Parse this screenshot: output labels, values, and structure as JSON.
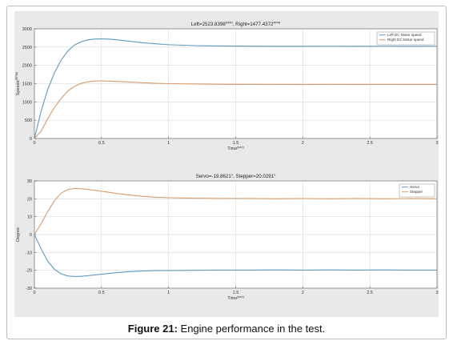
{
  "caption": {
    "label": "Figure 21:",
    "text": " Engine performance in the test."
  },
  "chart_data": [
    {
      "type": "line",
      "title": "Left=2523.8398",
      "title_sup1": "RPM",
      "title_mid": ", Right=1477.4372",
      "title_sup2": "RPM",
      "xlabel": "Time",
      "xlabel_sup": "(sec)",
      "ylabel": "Speeds",
      "ylabel_sup": "(RPM)",
      "xlim": [
        0,
        3
      ],
      "ylim": [
        0,
        3000
      ],
      "xticks": [
        0,
        0.5,
        1,
        1.5,
        2,
        2.5,
        3
      ],
      "xtick_labels": [
        "0",
        "0.5",
        "1",
        "1.5",
        "2",
        "2.5",
        "3"
      ],
      "yticks": [
        0,
        500,
        1000,
        1500,
        2000,
        2500,
        3000
      ],
      "ytick_labels": [
        "0",
        "500",
        "1000",
        "1500",
        "2000",
        "2500",
        "3000"
      ],
      "grid": true,
      "legend_position": "top-right",
      "x": [
        0,
        0.05,
        0.1,
        0.15,
        0.2,
        0.25,
        0.3,
        0.35,
        0.4,
        0.45,
        0.5,
        0.55,
        0.6,
        0.7,
        0.8,
        0.9,
        1.0,
        1.2,
        1.4,
        1.6,
        1.8,
        2.0,
        2.2,
        2.4,
        2.6,
        2.8,
        3.0
      ],
      "series": [
        {
          "name": "Left DC Motor speed",
          "color": "#5b9bbd",
          "values": [
            0,
            750,
            1350,
            1800,
            2150,
            2400,
            2560,
            2650,
            2700,
            2720,
            2725,
            2720,
            2705,
            2665,
            2620,
            2590,
            2565,
            2540,
            2530,
            2525,
            2523,
            2523,
            2524,
            2523,
            2524,
            2523,
            2524
          ]
        },
        {
          "name": "Right DC Motor speed",
          "color": "#d99a6c",
          "values": [
            0,
            200,
            550,
            850,
            1100,
            1300,
            1430,
            1510,
            1550,
            1570,
            1575,
            1570,
            1562,
            1545,
            1525,
            1510,
            1500,
            1490,
            1482,
            1479,
            1478,
            1477,
            1478,
            1477,
            1478,
            1477,
            1477
          ]
        }
      ]
    },
    {
      "type": "line",
      "title": "Servo=-19.8621",
      "title_sup1": "o",
      "title_mid": ", Stepper=20.0291",
      "title_sup2": "o",
      "xlabel": "Time",
      "xlabel_sup": "(sec)",
      "ylabel": "Degree",
      "ylabel_sup": "",
      "xlim": [
        0,
        3
      ],
      "ylim": [
        -30,
        30
      ],
      "xticks": [
        0,
        0.5,
        1,
        1.5,
        2,
        2.5,
        3
      ],
      "xtick_labels": [
        "0",
        "0.5",
        "1",
        "1.5",
        "2",
        "2.5",
        "3"
      ],
      "yticks": [
        -30,
        -20,
        -10,
        0,
        10,
        20,
        30
      ],
      "ytick_labels": [
        "-30",
        "-20",
        "-10",
        "0",
        "10",
        "20",
        "30"
      ],
      "grid": true,
      "legend_position": "top-right",
      "x": [
        0,
        0.05,
        0.1,
        0.15,
        0.2,
        0.25,
        0.3,
        0.35,
        0.4,
        0.45,
        0.5,
        0.55,
        0.6,
        0.7,
        0.8,
        0.9,
        1.0,
        1.2,
        1.4,
        1.6,
        1.8,
        2.0,
        2.2,
        2.4,
        2.6,
        2.8,
        3.0
      ],
      "series": [
        {
          "name": "Servo",
          "color": "#5b9bbd",
          "values": [
            0,
            -8,
            -15,
            -19.5,
            -22,
            -23.2,
            -23.5,
            -23.3,
            -23,
            -22.6,
            -22.2,
            -21.8,
            -21.4,
            -20.8,
            -20.4,
            -20.2,
            -20.1,
            -20,
            -19.9,
            -19.9,
            -19.8,
            -19.9,
            -19.8,
            -19.9,
            -19.8,
            -19.9,
            -19.9
          ]
        },
        {
          "name": "Stepper",
          "color": "#d99a6c",
          "values": [
            0,
            6,
            13,
            19,
            23.2,
            25.2,
            25.8,
            25.6,
            25.2,
            24.7,
            24.2,
            23.7,
            23.1,
            22.2,
            21.4,
            20.9,
            20.6,
            20.3,
            20.2,
            20.1,
            20.0,
            20.1,
            20.0,
            20.1,
            20.0,
            20.1,
            20.0
          ]
        }
      ]
    }
  ]
}
